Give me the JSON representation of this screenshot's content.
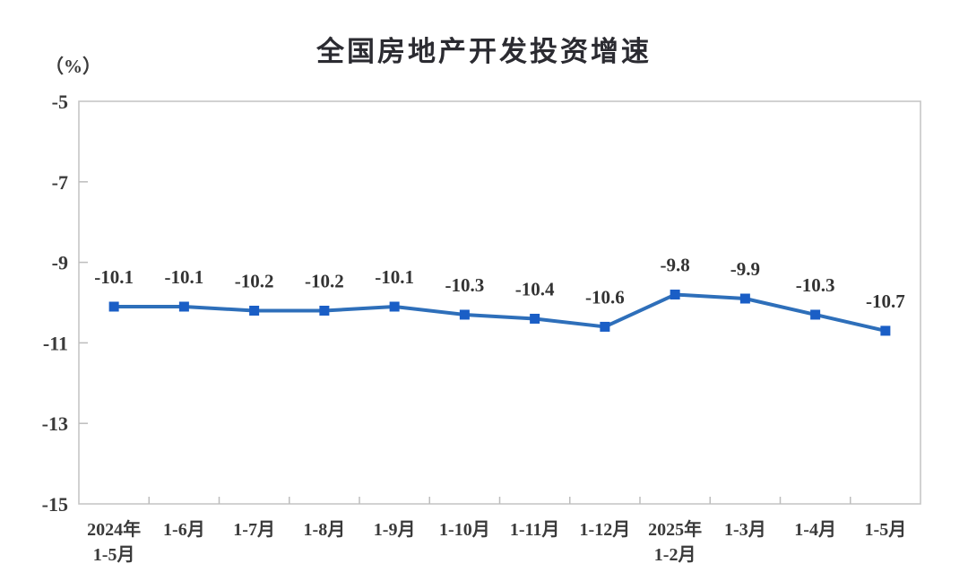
{
  "title": "全国房地产开发投资增速",
  "unit_label": "（%）",
  "chart_data": {
    "type": "line",
    "title": "全国房地产开发投资增速",
    "ylabel": "（%）",
    "xlabel": "",
    "categories": [
      "2024年\n1-5月",
      "1-6月",
      "1-7月",
      "1-8月",
      "1-9月",
      "1-10月",
      "1-11月",
      "1-12月",
      "2025年\n1-2月",
      "1-3月",
      "1-4月",
      "1-5月"
    ],
    "values": [
      -10.1,
      -10.1,
      -10.2,
      -10.2,
      -10.1,
      -10.3,
      -10.4,
      -10.6,
      -9.8,
      -9.9,
      -10.3,
      -10.7
    ],
    "data_labels": [
      "-10.1",
      "-10.1",
      "-10.2",
      "-10.2",
      "-10.1",
      "-10.3",
      "-10.4",
      "-10.6",
      "-9.8",
      "-9.9",
      "-10.3",
      "-10.7"
    ],
    "ylim": [
      -15,
      -5
    ],
    "yticks": [
      -5,
      -7,
      -9,
      -11,
      -13,
      -15
    ],
    "grid": false,
    "legend": "none",
    "marker_shape": "square",
    "line_color": "#2e6fba",
    "marker_color": "#1a5ec6",
    "axis_color": "#c6c6c6",
    "tick_color": "#bdbdbd",
    "text_color": "#3a3a3a"
  }
}
